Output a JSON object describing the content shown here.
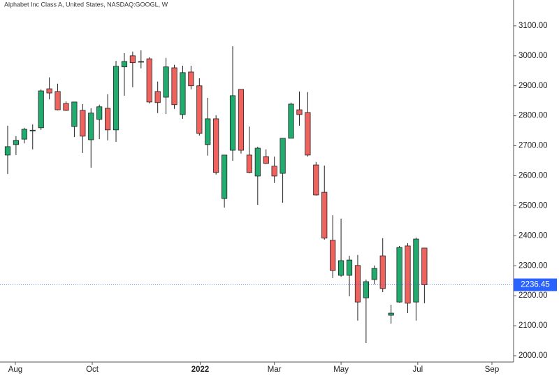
{
  "chart_data": {
    "type": "candlestick",
    "title": "Alphabet Inc Class A, United States, NASDAQ:GOOGL, W",
    "open": [
      2669,
      2704,
      2722,
      2750,
      2760,
      2890,
      2881,
      2841,
      2764,
      2818,
      2720,
      2788,
      2825,
      2753,
      2963,
      3000,
      2979,
      2990,
      2881,
      2862,
      2960,
      2804,
      2946,
      2900,
      2704,
      2790,
      2524,
      2685,
      2888,
      2669,
      2599,
      2664,
      2632,
      2608,
      2725,
      2820,
      2811,
      2636,
      2545,
      2385,
      2268,
      2268,
      2301,
      2193,
      2254,
      2333,
      2135,
      2179,
      2366,
      2179,
      2359
    ],
    "high": [
      2767,
      2732,
      2760,
      2771,
      2888,
      2928,
      2907,
      2848,
      2846,
      2839,
      2825,
      2837,
      2872,
      2983,
      3009,
      3014,
      3018,
      2995,
      2914,
      2993,
      2970,
      2967,
      2967,
      2925,
      2860,
      2802,
      2669,
      3032,
      2888,
      2764,
      2697,
      2688,
      2664,
      2725,
      2844,
      2881,
      2879,
      2646,
      2634,
      2468,
      2457,
      2333,
      2336,
      2254,
      2301,
      2392,
      2170,
      2366,
      2375,
      2394,
      2359
    ],
    "low": [
      2606,
      2669,
      2708,
      2688,
      2753,
      2855,
      2818,
      2816,
      2729,
      2676,
      2627,
      2722,
      2718,
      2713,
      2867,
      2895,
      2958,
      2841,
      2809,
      2806,
      2823,
      2790,
      2888,
      2734,
      2667,
      2604,
      2494,
      2650,
      2674,
      2608,
      2503,
      2639,
      2576,
      2510,
      2725,
      2767,
      2664,
      2534,
      2387,
      2259,
      2263,
      2198,
      2117,
      2042,
      2238,
      2212,
      2107,
      2177,
      2142,
      2117,
      2175
    ],
    "close": [
      2697,
      2718,
      2755,
      2752,
      2883,
      2876,
      2820,
      2818,
      2846,
      2732,
      2809,
      2830,
      2753,
      2965,
      2981,
      2977,
      2981,
      2846,
      2844,
      2963,
      2837,
      2944,
      2900,
      2741,
      2790,
      2611,
      2669,
      2867,
      2685,
      2611,
      2692,
      2641,
      2599,
      2725,
      2839,
      2804,
      2669,
      2536,
      2392,
      2284,
      2317,
      2319,
      2179,
      2247,
      2291,
      2224,
      2142,
      2361,
      2175,
      2389,
      2236.45
    ],
    "up_color": "#22ab6e",
    "down_color": "#f0625e",
    "last_price": 2236.45,
    "last_price_color": "#2962ff",
    "ylim": [
      1979,
      3186
    ],
    "yticks": [
      {
        "value": 2000,
        "label": "2000.00"
      },
      {
        "value": 2100,
        "label": "2100.00"
      },
      {
        "value": 2200,
        "label": "2200.00"
      },
      {
        "value": 2300,
        "label": "2300.00"
      },
      {
        "value": 2400,
        "label": "2400.00"
      },
      {
        "value": 2500,
        "label": "2500.00"
      },
      {
        "value": 2600,
        "label": "2600.00"
      },
      {
        "value": 2700,
        "label": "2700.00"
      },
      {
        "value": 2800,
        "label": "2800.00"
      },
      {
        "value": 2900,
        "label": "2900.00"
      },
      {
        "value": 3000,
        "label": "3000.00"
      },
      {
        "value": 3100,
        "label": "3100.00"
      }
    ],
    "xlim": [
      -0.92,
      60.7
    ],
    "xticks": [
      {
        "value": 0.92,
        "label": "Aug"
      },
      {
        "value": 10.15,
        "label": "Oct"
      },
      {
        "value": 23.1,
        "label": "2022"
      },
      {
        "value": 32,
        "label": "Mar"
      },
      {
        "value": 40,
        "label": "May"
      },
      {
        "value": 49.2,
        "label": "Jul"
      },
      {
        "value": 58.1,
        "label": "Sep"
      }
    ]
  }
}
